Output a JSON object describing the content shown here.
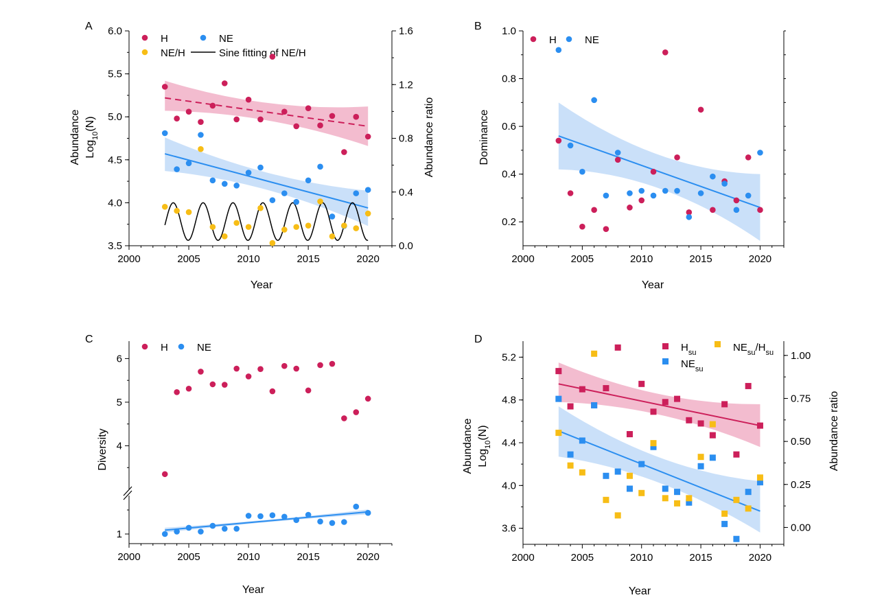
{
  "colors": {
    "H": "#cc1f5a",
    "NE": "#2b8ef0",
    "ratio": "#f7bd16",
    "band_H": "#efa6bf",
    "band_NE": "#b8d6f7",
    "fit": "#000000"
  },
  "chart_data": [
    {
      "panel": "A",
      "type": "scatter",
      "xlabel": "Year",
      "ylabel_line1": "Abundance",
      "ylabel_line2": "Log10(N)",
      "ylabel_right": "Abundance ratio",
      "xlim": [
        2000,
        2022
      ],
      "ylim": [
        3.5,
        6.0
      ],
      "ylim_right": [
        0.0,
        1.6
      ],
      "xticks": [
        "2000",
        "2005",
        "2010",
        "2015",
        "2020"
      ],
      "yticks": [
        "3.5",
        "4.0",
        "4.5",
        "5.0",
        "5.5",
        "6.0"
      ],
      "yticks_right": [
        "0.0",
        "0.4",
        "0.8",
        "1.2",
        "1.6"
      ],
      "legend": {
        "H": "H",
        "NE": "NE",
        "ratio": "NE/H",
        "fit": "Sine fitting of NE/H"
      },
      "series": [
        {
          "name": "H",
          "axis": "left",
          "x": [
            2003,
            2004,
            2005,
            2006,
            2007,
            2008,
            2009,
            2010,
            2011,
            2012,
            2013,
            2014,
            2015,
            2016,
            2017,
            2018,
            2019,
            2020
          ],
          "y": [
            5.35,
            4.98,
            5.06,
            4.94,
            5.13,
            5.39,
            4.97,
            5.2,
            4.97,
            5.7,
            5.06,
            4.89,
            5.1,
            4.9,
            5.01,
            4.59,
            5.0,
            4.77
          ]
        },
        {
          "name": "NE",
          "axis": "left",
          "x": [
            2003,
            2004,
            2005,
            2006,
            2007,
            2008,
            2009,
            2010,
            2011,
            2012,
            2013,
            2014,
            2015,
            2016,
            2017,
            2018,
            2019,
            2020
          ],
          "y": [
            4.81,
            4.39,
            4.46,
            4.79,
            4.26,
            4.22,
            4.2,
            4.35,
            4.41,
            4.03,
            4.11,
            4.01,
            4.26,
            4.42,
            3.84,
            3.73,
            4.11,
            4.15
          ]
        },
        {
          "name": "NE/H",
          "axis": "right",
          "x": [
            2003,
            2004,
            2005,
            2006,
            2007,
            2008,
            2009,
            2010,
            2011,
            2012,
            2013,
            2014,
            2015,
            2016,
            2017,
            2018,
            2019,
            2020
          ],
          "y": [
            0.29,
            0.26,
            0.25,
            0.72,
            0.14,
            0.07,
            0.17,
            0.14,
            0.28,
            0.02,
            0.12,
            0.14,
            0.15,
            0.33,
            0.07,
            0.15,
            0.13,
            0.24
          ]
        }
      ],
      "trends": [
        {
          "series": "H",
          "x": [
            2003,
            2020
          ],
          "y": [
            5.22,
            4.89
          ],
          "style": "dashed",
          "band_lo": [
            5.07,
            4.66
          ],
          "band_hi": [
            5.42,
            5.12
          ]
        },
        {
          "series": "NE",
          "x": [
            2003,
            2020
          ],
          "y": [
            4.57,
            3.94
          ],
          "style": "solid",
          "band_lo": [
            4.37,
            3.73
          ],
          "band_hi": [
            4.76,
            4.14
          ]
        }
      ],
      "sine_fit": {
        "axis": "right",
        "x_range": [
          2003,
          2020
        ],
        "mean": 0.18,
        "amplitude": 0.14,
        "period": 2.5,
        "phase_peak_year": 2003.7
      }
    },
    {
      "panel": "B",
      "type": "scatter",
      "xlabel": "Year",
      "ylabel": "Dominance",
      "xlim": [
        2000,
        2022
      ],
      "ylim": [
        0.1,
        1.0
      ],
      "xticks": [
        "2000",
        "2005",
        "2010",
        "2015",
        "2020"
      ],
      "yticks": [
        "0.2",
        "0.4",
        "0.6",
        "0.8",
        "1.0"
      ],
      "legend": {
        "H": "H",
        "NE": "NE"
      },
      "series": [
        {
          "name": "H",
          "x": [
            2003,
            2004,
            2005,
            2006,
            2007,
            2008,
            2009,
            2010,
            2011,
            2012,
            2013,
            2014,
            2015,
            2016,
            2017,
            2018,
            2019,
            2020
          ],
          "y": [
            0.54,
            0.32,
            0.18,
            0.25,
            0.17,
            0.46,
            0.26,
            0.29,
            0.41,
            0.91,
            0.47,
            0.24,
            0.67,
            0.25,
            0.37,
            0.29,
            0.47,
            0.25
          ]
        },
        {
          "name": "NE",
          "x": [
            2003,
            2004,
            2005,
            2006,
            2007,
            2008,
            2009,
            2010,
            2011,
            2012,
            2013,
            2014,
            2015,
            2016,
            2017,
            2018,
            2019,
            2020
          ],
          "y": [
            0.92,
            0.52,
            0.41,
            0.71,
            0.31,
            0.49,
            0.32,
            0.33,
            0.31,
            0.33,
            0.33,
            0.22,
            0.32,
            0.39,
            0.36,
            0.25,
            0.31,
            0.49
          ]
        }
      ],
      "trends": [
        {
          "series": "NE",
          "x": [
            2003,
            2020
          ],
          "y": [
            0.56,
            0.26
          ],
          "style": "solid",
          "band_lo": [
            0.42,
            0.12
          ],
          "band_hi": [
            0.7,
            0.4
          ]
        }
      ]
    },
    {
      "panel": "C",
      "type": "scatter",
      "xlabel": "Year",
      "ylabel": "Diversity",
      "xlim": [
        2000,
        2022
      ],
      "broken_axis": true,
      "lower_ylim": [
        0.8,
        1.8
      ],
      "upper_ylim": [
        3.0,
        6.4
      ],
      "xticks": [
        "2000",
        "2005",
        "2010",
        "2015",
        "2020"
      ],
      "yticks_lower": [
        "1"
      ],
      "yticks_upper": [
        "4",
        "5",
        "6"
      ],
      "legend": {
        "H": "H",
        "NE": "NE"
      },
      "series": [
        {
          "name": "H",
          "x": [
            2003,
            2004,
            2005,
            2006,
            2007,
            2008,
            2009,
            2010,
            2011,
            2012,
            2013,
            2014,
            2015,
            2016,
            2017,
            2018,
            2019,
            2020
          ],
          "y": [
            3.35,
            5.23,
            5.31,
            5.7,
            5.41,
            5.4,
            5.77,
            5.59,
            5.76,
            5.25,
            5.83,
            5.77,
            5.27,
            5.85,
            5.88,
            4.63,
            4.77,
            5.08
          ]
        },
        {
          "name": "NE",
          "x": [
            2003,
            2004,
            2005,
            2006,
            2007,
            2008,
            2009,
            2010,
            2011,
            2012,
            2013,
            2014,
            2015,
            2016,
            2017,
            2018,
            2019,
            2020
          ],
          "y": [
            1.0,
            1.05,
            1.13,
            1.05,
            1.17,
            1.11,
            1.11,
            1.38,
            1.37,
            1.39,
            1.36,
            1.29,
            1.4,
            1.26,
            1.23,
            1.25,
            1.57,
            1.44
          ]
        }
      ],
      "trends": [
        {
          "series": "NE",
          "x": [
            2003,
            2020
          ],
          "y": [
            1.08,
            1.46
          ],
          "style": "solid",
          "band_lo": [
            1.03,
            1.41
          ],
          "band_hi": [
            1.13,
            1.51
          ]
        }
      ]
    },
    {
      "panel": "D",
      "type": "scatter",
      "xlabel": "Year",
      "ylabel_line1": "Abundance",
      "ylabel_line2": "Log10(N)",
      "ylabel_right": "Abundance ratio",
      "xlim": [
        2000,
        2022
      ],
      "ylim": [
        3.45,
        5.35
      ],
      "ylim_right": [
        -0.098,
        1.083
      ],
      "xticks": [
        "2000",
        "2005",
        "2010",
        "2015",
        "2020"
      ],
      "yticks": [
        "3.6",
        "4.0",
        "4.4",
        "4.8",
        "5.2"
      ],
      "yticks_right": [
        "0.00",
        "0.25",
        "0.50",
        "0.75",
        "1.00"
      ],
      "legend": {
        "H": "H",
        "NE": "NE",
        "ratio": "NE/H",
        "sub": "su"
      },
      "series": [
        {
          "name": "Hsu",
          "axis": "left",
          "x": [
            2003,
            2004,
            2005,
            2006,
            2007,
            2008,
            2009,
            2010,
            2011,
            2012,
            2013,
            2014,
            2015,
            2016,
            2017,
            2018,
            2019,
            2020
          ],
          "y": [
            5.07,
            4.74,
            4.9,
            4.75,
            4.91,
            5.29,
            4.48,
            4.95,
            4.69,
            4.78,
            4.81,
            4.61,
            4.58,
            4.47,
            4.76,
            4.29,
            4.93,
            4.56
          ]
        },
        {
          "name": "NEsu",
          "axis": "left",
          "x": [
            2003,
            2004,
            2005,
            2006,
            2007,
            2008,
            2009,
            2010,
            2011,
            2012,
            2013,
            2014,
            2015,
            2016,
            2017,
            2018,
            2019,
            2020
          ],
          "y": [
            4.81,
            4.29,
            4.42,
            4.75,
            4.09,
            4.13,
            3.97,
            4.2,
            4.36,
            3.97,
            3.94,
            3.84,
            4.18,
            4.26,
            3.64,
            3.5,
            3.94,
            4.03
          ]
        },
        {
          "name": "NEsu/Hsu",
          "axis": "right",
          "x": [
            2003,
            2004,
            2005,
            2006,
            2007,
            2008,
            2009,
            2010,
            2011,
            2012,
            2013,
            2014,
            2015,
            2016,
            2017,
            2018,
            2019,
            2020
          ],
          "y": [
            0.55,
            0.36,
            0.32,
            1.01,
            0.16,
            0.07,
            0.3,
            0.2,
            0.49,
            0.17,
            0.14,
            0.17,
            0.41,
            0.6,
            0.08,
            0.16,
            0.11,
            0.29
          ]
        }
      ],
      "trends": [
        {
          "series": "Hsu",
          "x": [
            2003,
            2020
          ],
          "y": [
            4.95,
            4.56
          ],
          "style": "solid",
          "band_lo": [
            4.78,
            4.36
          ],
          "band_hi": [
            5.15,
            4.76
          ]
        },
        {
          "series": "NEsu",
          "x": [
            2003,
            2020
          ],
          "y": [
            4.51,
            3.76
          ],
          "style": "solid",
          "band_lo": [
            4.27,
            3.56
          ],
          "band_hi": [
            4.74,
            4.04
          ]
        }
      ]
    }
  ]
}
